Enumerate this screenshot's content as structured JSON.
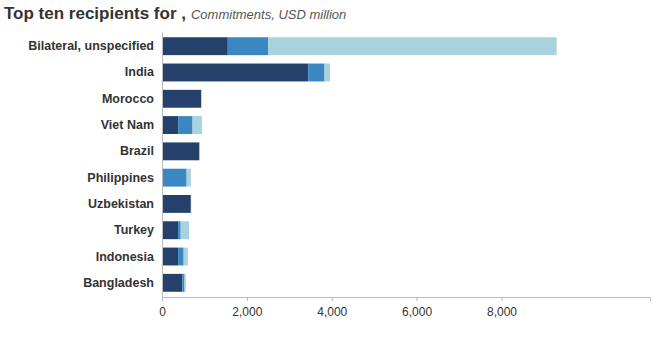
{
  "chart_data": {
    "type": "bar",
    "orientation": "horizontal",
    "stacked": true,
    "title": "Top ten recipients for ,",
    "subtitle": "Commitments, USD million",
    "categories": [
      "Bilateral, unspecified",
      "India",
      "Morocco",
      "Viet Nam",
      "Brazil",
      "Philippines",
      "Uzbekistan",
      "Turkey",
      "Indonesia",
      "Bangladesh"
    ],
    "series": [
      {
        "color": "#25416b",
        "values": [
          1550,
          3450,
          920,
          380,
          880,
          0,
          680,
          380,
          380,
          480
        ]
      },
      {
        "color": "#3a87c2",
        "values": [
          950,
          380,
          0,
          340,
          0,
          580,
          0,
          60,
          130,
          50
        ]
      },
      {
        "color": "#a8d2dc",
        "values": [
          6800,
          130,
          20,
          220,
          10,
          100,
          10,
          200,
          100,
          30
        ]
      }
    ],
    "xlim": [
      0,
      11500
    ],
    "xticks": [
      0,
      {
        "value": 2000,
        "label": "2,000"
      },
      {
        "value": 4000,
        "label": "4,000"
      },
      {
        "value": 6000,
        "label": "6,000"
      },
      {
        "value": 8000,
        "label": "8,000"
      }
    ],
    "grid": false
  }
}
